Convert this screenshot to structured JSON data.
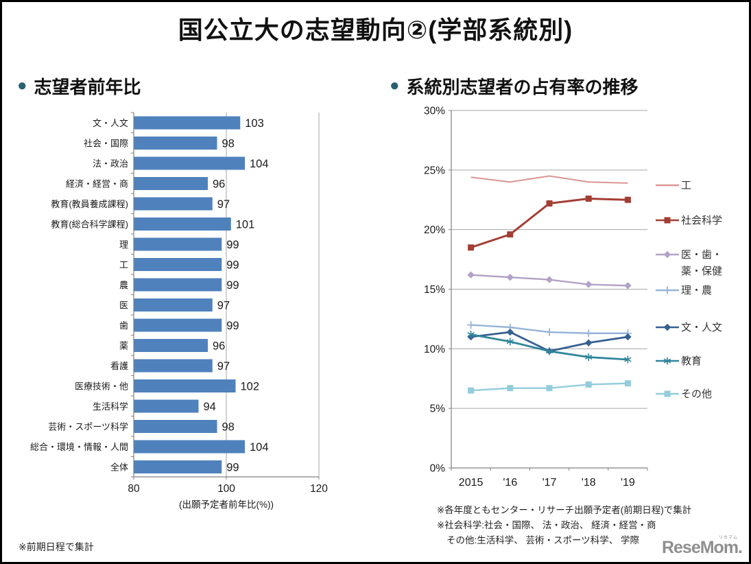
{
  "header": {
    "title": "国公立大の志望動向②(学部系統別)"
  },
  "sections": {
    "left": {
      "bullet": "●",
      "title": "志望者前年比",
      "footnote": "※前期日程で集計"
    },
    "right": {
      "bullet": "●",
      "title": "系統別志望者の占有率の推移",
      "notes": [
        "※各年度ともセンター・リサーチ出願予定者(前期日程)で集計",
        "※社会科学:社会・国際、 法・政治、 経済・経営・商",
        "その他:生活科学、 芸術・スポーツ科学、 学際"
      ]
    }
  },
  "logo": {
    "text": "ReseMom.",
    "ruby": "リセマム"
  },
  "colors": {
    "bullet": "#2a5f6e",
    "bar": "#4f81bd",
    "axis": "#808080",
    "grid": "#a6a6a6",
    "label": "#1a1a1a"
  },
  "chart_data": [
    {
      "type": "bar",
      "orientation": "horizontal",
      "title": "志望者前年比",
      "categories": [
        "文・人文",
        "社会・国際",
        "法・政治",
        "経済・経営・商",
        "教育(教員養成課程)",
        "教育(総合科学課程)",
        "理",
        "工",
        "農",
        "医",
        "歯",
        "薬",
        "看護",
        "医療技術・他",
        "生活科学",
        "芸術・スポーツ科学",
        "総合・環境・情報・人間",
        "全体"
      ],
      "values": [
        103,
        98,
        104,
        96,
        97,
        101,
        99,
        99,
        99,
        97,
        99,
        96,
        97,
        102,
        94,
        98,
        104,
        99
      ],
      "xlabel": "(出願予定者前年比(%))",
      "xlim": [
        80,
        120
      ],
      "xticks": [
        80,
        100,
        120
      ],
      "grid": true,
      "bar_color": "#4f81bd"
    },
    {
      "type": "line",
      "title": "系統別志望者の占有率の推移",
      "x": [
        "2015",
        "'16",
        "'17",
        "'18",
        "'19"
      ],
      "ylim": [
        0,
        30
      ],
      "ytick_step": 5,
      "yunit": "%",
      "grid": true,
      "legend_position": "right",
      "series": [
        {
          "name": "工",
          "legend": "工",
          "color": "#d99694",
          "marker": "none",
          "width": 2,
          "values": [
            24.4,
            24.0,
            24.5,
            24.0,
            23.9
          ]
        },
        {
          "name": "社会科学",
          "legend": "社会科学",
          "color": "#a33e35",
          "marker": "square",
          "width": 3,
          "values": [
            18.5,
            19.6,
            22.2,
            22.6,
            22.5
          ]
        },
        {
          "name": "医・歯・薬・保健",
          "legend": "医・歯・\n薬・保健",
          "color": "#b3a2c7",
          "marker": "diamond",
          "width": 2.4,
          "values": [
            16.2,
            16.0,
            15.8,
            15.4,
            15.3
          ]
        },
        {
          "name": "理・農",
          "legend": "理・農",
          "color": "#95b3d7",
          "marker": "plus",
          "width": 2.4,
          "values": [
            12.0,
            11.8,
            11.4,
            11.3,
            11.3
          ]
        },
        {
          "name": "文・人文",
          "legend": "文・人文",
          "color": "#376092",
          "marker": "diamond",
          "width": 2.8,
          "values": [
            11.0,
            11.4,
            9.8,
            10.5,
            11.0
          ]
        },
        {
          "name": "教育",
          "legend": "教育",
          "color": "#31859c",
          "marker": "star",
          "width": 2.8,
          "values": [
            11.2,
            10.6,
            9.8,
            9.3,
            9.1
          ]
        },
        {
          "name": "その他",
          "legend": "その他",
          "color": "#92cddc",
          "marker": "square",
          "width": 2.4,
          "values": [
            6.5,
            6.7,
            6.7,
            7.0,
            7.1
          ]
        }
      ]
    }
  ]
}
